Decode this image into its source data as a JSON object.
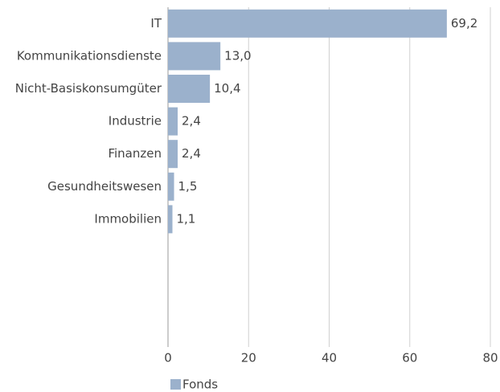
{
  "chart_data": {
    "type": "bar",
    "orientation": "horizontal",
    "categories": [
      "IT",
      "Kommunikationsdienste",
      "Nicht-Basiskonsumgüter",
      "Industrie",
      "Finanzen",
      "Gesundheitswesen",
      "Immobilien",
      null,
      null,
      null
    ],
    "series": [
      {
        "name": "Fonds",
        "color": "#9bb1cc",
        "values": [
          69.2,
          13.0,
          10.4,
          2.4,
          2.4,
          1.5,
          1.1,
          null,
          null,
          null
        ],
        "value_labels": [
          "69,2",
          "13,0",
          "10,4",
          "2,4",
          "2,4",
          "1,5",
          "1,1",
          null,
          null,
          null
        ]
      }
    ],
    "xlim": [
      0,
      80
    ],
    "xticks": [
      0,
      20,
      40,
      60,
      80
    ],
    "grid": true,
    "legend": "bottom-left"
  }
}
